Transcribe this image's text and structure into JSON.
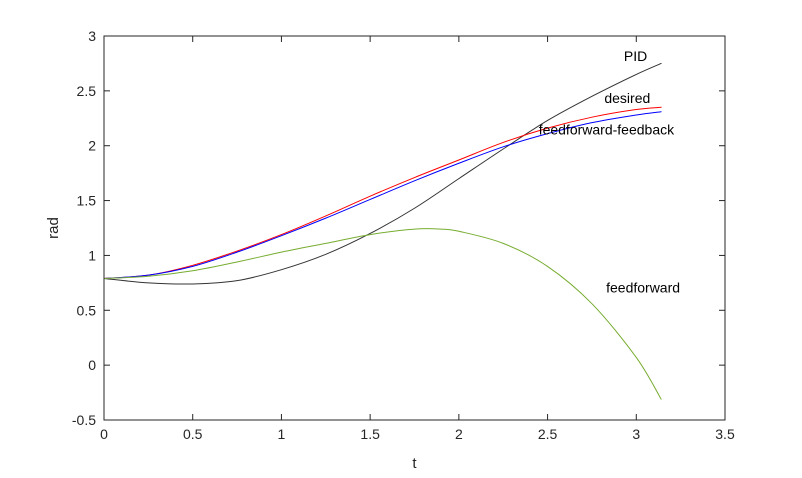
{
  "chart_data": {
    "type": "line",
    "xlabel": "t",
    "ylabel": "rad",
    "xlim": [
      0,
      3.5
    ],
    "ylim": [
      -0.5,
      3
    ],
    "xticks": [
      0,
      0.5,
      1,
      1.5,
      2,
      2.5,
      3,
      3.5
    ],
    "xtick_labels": [
      "0",
      "0.5",
      "1",
      "1.5",
      "2",
      "2.5",
      "3",
      "3.5"
    ],
    "yticks": [
      -0.5,
      0,
      0.5,
      1,
      1.5,
      2,
      2.5,
      3
    ],
    "ytick_labels": [
      "-0.5",
      "0",
      "0.5",
      "1",
      "1.5",
      "2",
      "2.5",
      "3"
    ],
    "grid": false,
    "legend": "none",
    "series": [
      {
        "name": "PID",
        "color": "#333333",
        "x": [
          0,
          0.25,
          0.5,
          0.75,
          1,
          1.25,
          1.5,
          1.75,
          2,
          2.25,
          2.5,
          2.75,
          3,
          3.14
        ],
        "y": [
          0.79,
          0.75,
          0.74,
          0.77,
          0.87,
          1.01,
          1.2,
          1.43,
          1.7,
          1.97,
          2.23,
          2.45,
          2.65,
          2.75
        ]
      },
      {
        "name": "desired",
        "color": "#ff0000",
        "x": [
          0,
          0.25,
          0.5,
          0.75,
          1,
          1.25,
          1.5,
          1.75,
          2,
          2.25,
          2.5,
          2.75,
          3,
          3.14
        ],
        "y": [
          0.79,
          0.82,
          0.91,
          1.04,
          1.19,
          1.36,
          1.54,
          1.71,
          1.87,
          2.03,
          2.16,
          2.26,
          2.33,
          2.35
        ]
      },
      {
        "name": "feedforward-feedback",
        "color": "#0000ff",
        "x": [
          0,
          0.25,
          0.5,
          0.75,
          1,
          1.25,
          1.5,
          1.75,
          2,
          2.25,
          2.5,
          2.75,
          3,
          3.14
        ],
        "y": [
          0.79,
          0.82,
          0.9,
          1.03,
          1.18,
          1.34,
          1.51,
          1.68,
          1.84,
          1.99,
          2.11,
          2.21,
          2.28,
          2.31
        ]
      },
      {
        "name": "feedforward",
        "color": "#77ac30",
        "x": [
          0,
          0.25,
          0.5,
          0.75,
          1,
          1.25,
          1.5,
          1.75,
          1.9,
          2,
          2.25,
          2.5,
          2.75,
          3,
          3.14
        ],
        "y": [
          0.79,
          0.81,
          0.86,
          0.94,
          1.03,
          1.11,
          1.19,
          1.24,
          1.24,
          1.22,
          1.11,
          0.9,
          0.56,
          0.07,
          -0.31
        ]
      }
    ],
    "annotations": [
      {
        "text": "PID",
        "x": 2.93,
        "y": 2.77
      },
      {
        "text": "desired",
        "x": 2.82,
        "y": 2.39
      },
      {
        "text": "feedforward-feedback",
        "x": 2.45,
        "y": 2.1
      },
      {
        "text": "feedforward",
        "x": 2.83,
        "y": 0.66
      }
    ]
  }
}
